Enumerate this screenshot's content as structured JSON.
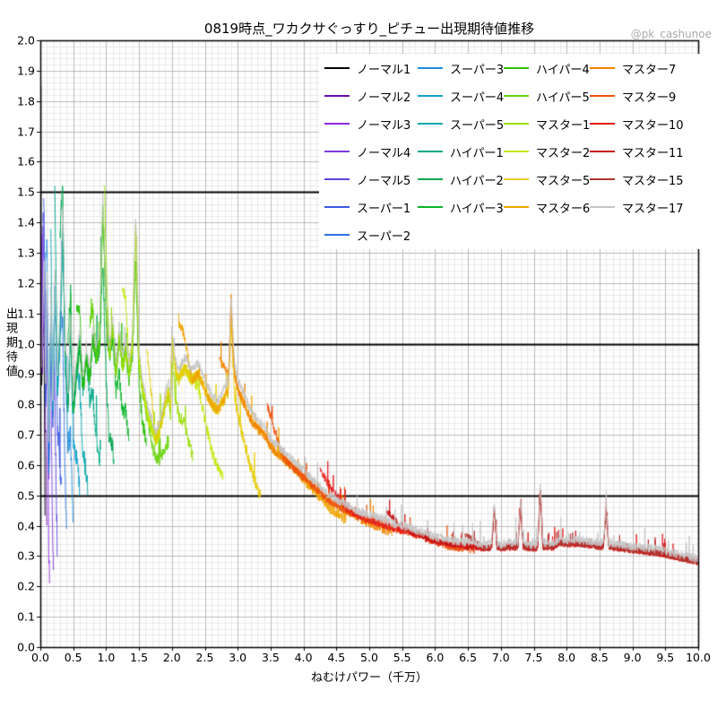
{
  "chart": {
    "title": "0819時点_ワカクサぐっすり_ピチュー出現期待値推移",
    "watermark": "@pk_cashunoe",
    "xlabel": "ねむけパワー（千万）",
    "ylabel": "出現期待値"
  },
  "chart_data": {
    "type": "line",
    "title": "0819時点_ワカクサぐっすり_ピチュー出現期待値推移",
    "xlabel": "ねむけパワー（千万）",
    "ylabel": "出現期待値",
    "xlim": [
      0,
      10
    ],
    "ylim": [
      0,
      2
    ],
    "x_tick_labels": [
      "0.0",
      "0.5",
      "1.0",
      "1.5",
      "2.0",
      "2.5",
      "3.0",
      "3.5",
      "4.0",
      "4.5",
      "5.0",
      "5.5",
      "6.0",
      "6.5",
      "7.0",
      "7.5",
      "8.0",
      "8.5",
      "9.0",
      "9.5",
      "10.0"
    ],
    "y_tick_labels": [
      "0.0",
      "0.1",
      "0.2",
      "0.3",
      "0.4",
      "0.5",
      "0.6",
      "0.7",
      "0.8",
      "0.9",
      "1.0",
      "1.1",
      "1.2",
      "1.3",
      "1.4",
      "1.5",
      "1.6",
      "1.7",
      "1.8",
      "1.9",
      "2.0"
    ],
    "bold_hlines": [
      0.5,
      1.0,
      1.5
    ],
    "grid": {
      "x_minor_step": 0.1,
      "x_major_step": 0.5,
      "y_minor_step": 0.02,
      "y_major_step": 0.1,
      "minor_color": "#dcdcdc",
      "major_color": "#ababab"
    },
    "legend_position": "upper center-right, 4 columns, no frame",
    "legend_columns": [
      [
        0,
        1,
        2,
        3,
        4,
        5,
        6
      ],
      [
        7,
        8,
        9,
        10,
        11,
        12
      ],
      [
        13,
        14,
        15,
        16,
        17,
        18
      ],
      [
        19,
        20,
        21,
        22,
        23,
        24
      ]
    ],
    "envelope": [
      [
        0.0,
        0.72
      ],
      [
        0.03,
        0.95
      ],
      [
        0.06,
        1.2
      ],
      [
        0.08,
        0.8
      ],
      [
        0.1,
        1.15
      ],
      [
        0.13,
        0.6
      ],
      [
        0.16,
        1.1
      ],
      [
        0.19,
        0.75
      ],
      [
        0.22,
        1.18
      ],
      [
        0.26,
        0.85
      ],
      [
        0.3,
        1.05
      ],
      [
        0.34,
        1.38
      ],
      [
        0.38,
        0.95
      ],
      [
        0.42,
        0.8
      ],
      [
        0.46,
        1.05
      ],
      [
        0.5,
        0.78
      ],
      [
        0.55,
        0.9
      ],
      [
        0.6,
        1.0
      ],
      [
        0.65,
        0.85
      ],
      [
        0.7,
        0.95
      ],
      [
        0.75,
        0.88
      ],
      [
        0.8,
        1.02
      ],
      [
        0.85,
        0.95
      ],
      [
        0.9,
        1.0
      ],
      [
        0.95,
        1.45
      ],
      [
        1.0,
        1.1
      ],
      [
        1.05,
        0.95
      ],
      [
        1.1,
        1.05
      ],
      [
        1.15,
        0.9
      ],
      [
        1.2,
        1.02
      ],
      [
        1.25,
        0.92
      ],
      [
        1.3,
        0.98
      ],
      [
        1.35,
        0.9
      ],
      [
        1.4,
        1.0
      ],
      [
        1.45,
        1.38
      ],
      [
        1.5,
        0.95
      ],
      [
        1.55,
        0.85
      ],
      [
        1.6,
        0.8
      ],
      [
        1.65,
        0.75
      ],
      [
        1.7,
        0.72
      ],
      [
        1.75,
        0.68
      ],
      [
        1.8,
        0.7
      ],
      [
        1.85,
        0.75
      ],
      [
        1.9,
        0.8
      ],
      [
        1.95,
        0.85
      ],
      [
        1.98,
        0.8
      ],
      [
        2.0,
        1.02
      ],
      [
        2.05,
        0.92
      ],
      [
        2.1,
        0.88
      ],
      [
        2.2,
        0.92
      ],
      [
        2.3,
        0.88
      ],
      [
        2.4,
        0.9
      ],
      [
        2.5,
        0.85
      ],
      [
        2.6,
        0.8
      ],
      [
        2.7,
        0.78
      ],
      [
        2.8,
        0.82
      ],
      [
        2.86,
        0.85
      ],
      [
        2.9,
        1.12
      ],
      [
        2.95,
        0.9
      ],
      [
        3.0,
        0.85
      ],
      [
        3.1,
        0.8
      ],
      [
        3.2,
        0.75
      ],
      [
        3.3,
        0.72
      ],
      [
        3.4,
        0.7
      ],
      [
        3.5,
        0.66
      ],
      [
        3.6,
        0.64
      ],
      [
        3.7,
        0.62
      ],
      [
        3.8,
        0.6
      ],
      [
        3.9,
        0.58
      ],
      [
        4.0,
        0.56
      ],
      [
        4.1,
        0.54
      ],
      [
        4.2,
        0.52
      ],
      [
        4.3,
        0.5
      ],
      [
        4.4,
        0.48
      ],
      [
        4.5,
        0.47
      ],
      [
        4.6,
        0.455
      ],
      [
        4.7,
        0.445
      ],
      [
        4.8,
        0.435
      ],
      [
        4.9,
        0.425
      ],
      [
        5.0,
        0.42
      ],
      [
        5.2,
        0.405
      ],
      [
        5.4,
        0.39
      ],
      [
        5.6,
        0.38
      ],
      [
        5.8,
        0.365
      ],
      [
        6.0,
        0.35
      ],
      [
        6.2,
        0.34
      ],
      [
        6.4,
        0.335
      ],
      [
        6.6,
        0.33
      ],
      [
        6.8,
        0.325
      ],
      [
        6.86,
        0.33
      ],
      [
        6.9,
        0.46
      ],
      [
        6.94,
        0.33
      ],
      [
        7.0,
        0.325
      ],
      [
        7.1,
        0.33
      ],
      [
        7.26,
        0.33
      ],
      [
        7.3,
        0.47
      ],
      [
        7.34,
        0.33
      ],
      [
        7.5,
        0.325
      ],
      [
        7.56,
        0.33
      ],
      [
        7.6,
        0.52
      ],
      [
        7.64,
        0.33
      ],
      [
        7.8,
        0.33
      ],
      [
        7.9,
        0.345
      ],
      [
        8.0,
        0.34
      ],
      [
        8.2,
        0.34
      ],
      [
        8.4,
        0.335
      ],
      [
        8.56,
        0.33
      ],
      [
        8.6,
        0.46
      ],
      [
        8.64,
        0.33
      ],
      [
        8.8,
        0.325
      ],
      [
        9.0,
        0.32
      ],
      [
        9.2,
        0.315
      ],
      [
        9.4,
        0.31
      ],
      [
        9.6,
        0.3
      ],
      [
        9.8,
        0.29
      ],
      [
        10.0,
        0.28
      ]
    ],
    "series": [
      {
        "name": "ノーマル1",
        "color": "#000000",
        "range": [
          0.01,
          0.07
        ],
        "boost": 2.4,
        "drop": 0.45,
        "noise": 0.1
      },
      {
        "name": "ノーマル2",
        "color": "#6a0dad",
        "range": [
          0.01,
          0.1
        ],
        "boost": 1.7,
        "drop": 0.35,
        "noise": 0.1
      },
      {
        "name": "ノーマル3",
        "color": "#8a2be2",
        "range": [
          0.02,
          0.14
        ],
        "boost": 1.55,
        "drop": 0.32,
        "noise": 0.1
      },
      {
        "name": "ノーマル4",
        "color": "#7a3cdb",
        "range": [
          0.03,
          0.2
        ],
        "boost": 1.45,
        "drop": 0.3,
        "noise": 0.1
      },
      {
        "name": "ノーマル5",
        "color": "#5a46e0",
        "range": [
          0.04,
          0.26
        ],
        "boost": 1.4,
        "drop": 0.35,
        "noise": 0.09
      },
      {
        "name": "スーパー1",
        "color": "#3c5ae6",
        "range": [
          0.05,
          0.32
        ],
        "boost": 1.35,
        "drop": 0.4,
        "noise": 0.09
      },
      {
        "name": "スーパー2",
        "color": "#2b72e0",
        "range": [
          0.07,
          0.4
        ],
        "boost": 1.3,
        "drop": 0.45,
        "noise": 0.08
      },
      {
        "name": "スーパー3",
        "color": "#1e8cdc",
        "range": [
          0.09,
          0.5
        ],
        "boost": 1.3,
        "drop": 0.5,
        "noise": 0.08
      },
      {
        "name": "スーパー4",
        "color": "#14a0cd",
        "range": [
          0.12,
          0.6
        ],
        "boost": 1.25,
        "drop": 0.52,
        "noise": 0.07
      },
      {
        "name": "スーパー5",
        "color": "#0aa8ad",
        "range": [
          0.16,
          0.72
        ],
        "boost": 1.25,
        "drop": 0.55,
        "noise": 0.07
      },
      {
        "name": "ハイパー1",
        "color": "#02a88a",
        "range": [
          0.22,
          0.92
        ],
        "boost": 1.3,
        "drop": 0.58,
        "noise": 0.06
      },
      {
        "name": "ハイパー2",
        "color": "#04a850",
        "range": [
          0.3,
          1.12
        ],
        "boost": 1.28,
        "drop": 0.6,
        "noise": 0.06
      },
      {
        "name": "ハイパー3",
        "color": "#0ab42a",
        "range": [
          0.42,
          1.35
        ],
        "boost": 1.25,
        "drop": 0.75,
        "noise": 0.055
      },
      {
        "name": "ハイパー4",
        "color": "#2cc00a",
        "range": [
          0.55,
          1.62
        ],
        "boost": 1.25,
        "drop": 0.85,
        "noise": 0.05
      },
      {
        "name": "ハイパー5",
        "color": "#66d40a",
        "range": [
          0.75,
          1.95
        ],
        "boost": 1.2,
        "drop": 0.8,
        "noise": 0.05
      },
      {
        "name": "マスター1",
        "color": "#9ade06",
        "range": [
          0.95,
          2.32
        ],
        "boost": 1.3,
        "drop": 0.71,
        "noise": 0.045
      },
      {
        "name": "マスター2",
        "color": "#c4e606",
        "range": [
          1.25,
          2.78
        ],
        "boost": 1.28,
        "drop": 0.7,
        "noise": 0.04
      },
      {
        "name": "マスター5",
        "color": "#e6cc04",
        "range": [
          1.62,
          3.35
        ],
        "boost": 1.28,
        "drop": 0.7,
        "noise": 0.04
      },
      {
        "name": "マスター6",
        "color": "#f0a400",
        "range": [
          2.1,
          4.65
        ],
        "boost": 1.22,
        "drop": 0.93,
        "noise": 0.035
      },
      {
        "name": "マスター7",
        "color": "#f28300",
        "range": [
          2.72,
          5.35
        ],
        "boost": 1.2,
        "drop": 0.95,
        "noise": 0.03
      },
      {
        "name": "マスター9",
        "color": "#ee5211",
        "range": [
          3.45,
          6.6
        ],
        "boost": 1.18,
        "drop": 0.97,
        "noise": 0.028
      },
      {
        "name": "マスター10",
        "color": "#e41c1c",
        "range": [
          4.25,
          10.0
        ],
        "boost": 1.15,
        "drop": 1.0,
        "noise": 0.025
      },
      {
        "name": "マスター11",
        "color": "#c61414",
        "range": [
          5.25,
          10.0
        ],
        "boost": 1.12,
        "drop": 1.0,
        "noise": 0.022
      },
      {
        "name": "マスター15",
        "color": "#b23430",
        "range": [
          6.45,
          10.0
        ],
        "boost": 1.12,
        "drop": 1.0,
        "noise": 0.022
      },
      {
        "name": "マスター17",
        "color": "#c6c6c6",
        "range": [
          0.02,
          10.0
        ],
        "boost": 1.03,
        "drop": 1.0,
        "noise": 0.03,
        "mult": 1.04
      }
    ]
  }
}
